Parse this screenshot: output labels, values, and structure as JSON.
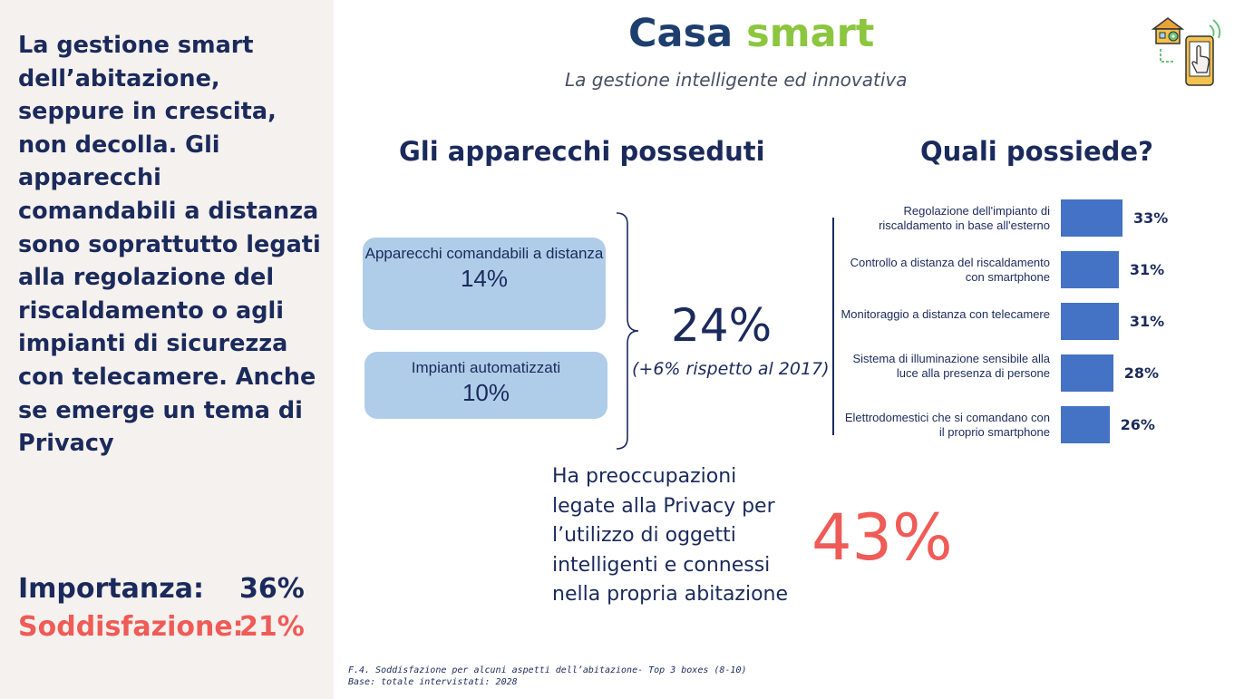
{
  "sidebar": {
    "text": "La gestione smart dell’abitazione, seppure in crescita, non decolla. Gli apparecchi comandabili a distanza sono soprattutto legati alla regolazione del riscaldamento o agli impianti di sicurezza con telecamere. Anche se emerge un tema di Privacy",
    "importanza_label": "Importanza:",
    "importanza_value": "36%",
    "soddisfazione_label": "Soddisfazione:",
    "soddisfazione_value": "21%"
  },
  "header": {
    "title_part1": "Casa",
    "title_part2": "smart",
    "subtitle": "La gestione intelligente ed innovativa"
  },
  "left_section": {
    "heading": "Gli apparecchi posseduti",
    "items": [
      {
        "label": "Apparecchi comandabili a distanza",
        "value": "14%"
      },
      {
        "label": "Impianti automatizzati",
        "value": "10%"
      }
    ],
    "total": "24%",
    "delta": "(+6% rispetto al 2017)"
  },
  "right_section": {
    "heading": "Quali possiede?"
  },
  "chart_data": {
    "type": "bar",
    "orientation": "horizontal",
    "title": "Quali possiede?",
    "categories": [
      "Regolazione  dell'impianto di riscaldamento in base all'esterno",
      "Controllo a distanza del riscaldamento con smartphone",
      "Monitoraggio a distanza con telecamere",
      "Sistema di illuminazione sensibile alla luce alla presenza di persone",
      "Elettrodomestici che si comandano  con il proprio smartphone"
    ],
    "values": [
      33,
      31,
      31,
      28,
      26
    ],
    "value_labels": [
      "33%",
      "31%",
      "31%",
      "28%",
      "26%"
    ],
    "unit": "%",
    "color": "#4472c4"
  },
  "privacy": {
    "text": "Ha preoccupazioni legate alla Privacy per l’utilizzo di oggetti intelligenti e connessi nella propria abitazione",
    "value": "43%"
  },
  "footnote": {
    "line1": "F.4. Soddisfazione per alcuni aspetti dell’abitazione- Top 3 boxes (8-10)",
    "line2": "Base: totale intervistati: 2028"
  },
  "colors": {
    "navy": "#1b2a5c",
    "green": "#8cc63f",
    "coral": "#ef5b57",
    "bar": "#4472c4",
    "pill": "#afcde8",
    "sidebar_bg": "#f5f1ee"
  }
}
